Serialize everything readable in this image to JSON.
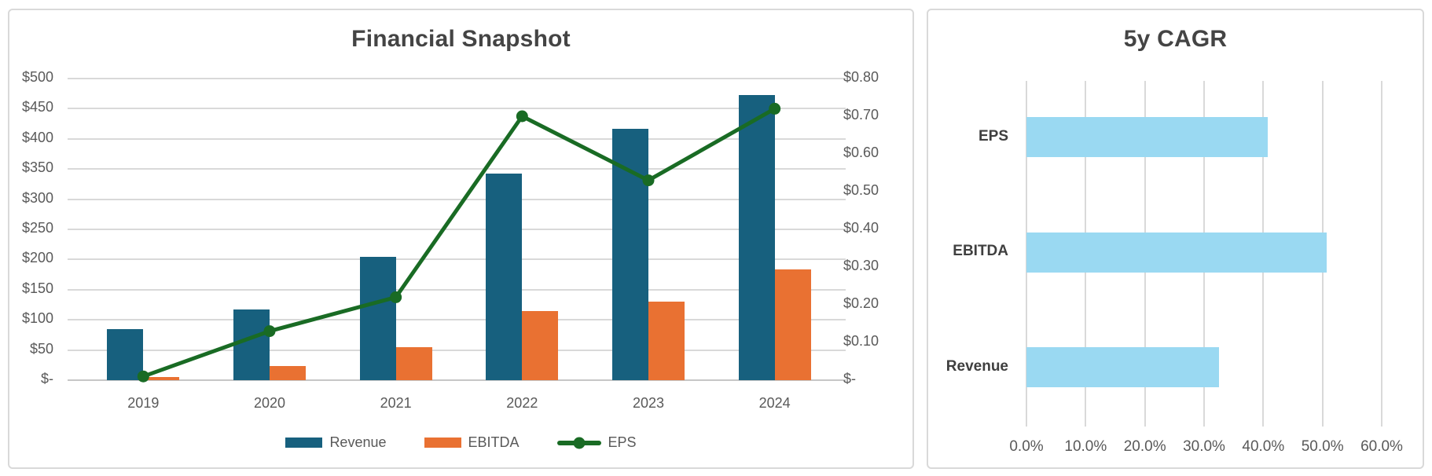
{
  "page": {
    "background": "#FFFFFF",
    "panel_border_color": "#D9D9D9",
    "gridline_color": "#D9D9D9",
    "axis_text_color": "#595959",
    "title_text_color": "#444444"
  },
  "chart_data": [
    {
      "type": "bar",
      "subtype": "clustered-columns-with-line-combo",
      "title": "Financial Snapshot",
      "categories": [
        "2019",
        "2020",
        "2021",
        "2022",
        "2023",
        "2024"
      ],
      "series": [
        {
          "name": "Revenue",
          "render": "bar",
          "axis": "left",
          "color": "#17607E",
          "values": [
            85,
            117,
            205,
            342,
            417,
            473
          ]
        },
        {
          "name": "EBITDA",
          "render": "bar",
          "axis": "left",
          "color": "#E97132",
          "values": [
            5,
            24,
            55,
            114,
            130,
            183
          ]
        },
        {
          "name": "EPS",
          "render": "line",
          "axis": "right",
          "color": "#196B24",
          "values": [
            0.01,
            0.13,
            0.22,
            0.7,
            0.53,
            0.72
          ]
        }
      ],
      "left_axis": {
        "min": 0,
        "max": 500,
        "step": 50,
        "tick_labels": [
          "$-",
          "$50",
          "$100",
          "$150",
          "$200",
          "$250",
          "$300",
          "$350",
          "$400",
          "$450",
          "$500"
        ]
      },
      "right_axis": {
        "min": 0,
        "max": 0.8,
        "step": 0.1,
        "tick_labels": [
          "$-",
          "$0.10",
          "$0.20",
          "$0.30",
          "$0.40",
          "$0.50",
          "$0.60",
          "$0.70",
          "$0.80"
        ]
      },
      "legend": {
        "position": "bottom",
        "entries": [
          "Revenue",
          "EBITDA",
          "EPS"
        ]
      },
      "grid": true
    },
    {
      "type": "bar",
      "orientation": "horizontal",
      "title": "5y CAGR",
      "categories": [
        "EPS",
        "EBITDA",
        "Revenue"
      ],
      "values": [
        40.8,
        50.7,
        32.5
      ],
      "unit": "%",
      "bar_color": "#9AD9F2",
      "xlim": [
        0,
        60
      ],
      "x_axis": {
        "min": 0,
        "max": 60,
        "step": 10,
        "tick_labels": [
          "0.0%",
          "10.0%",
          "20.0%",
          "30.0%",
          "40.0%",
          "50.0%",
          "60.0%"
        ]
      },
      "grid": true,
      "legend": null
    }
  ]
}
